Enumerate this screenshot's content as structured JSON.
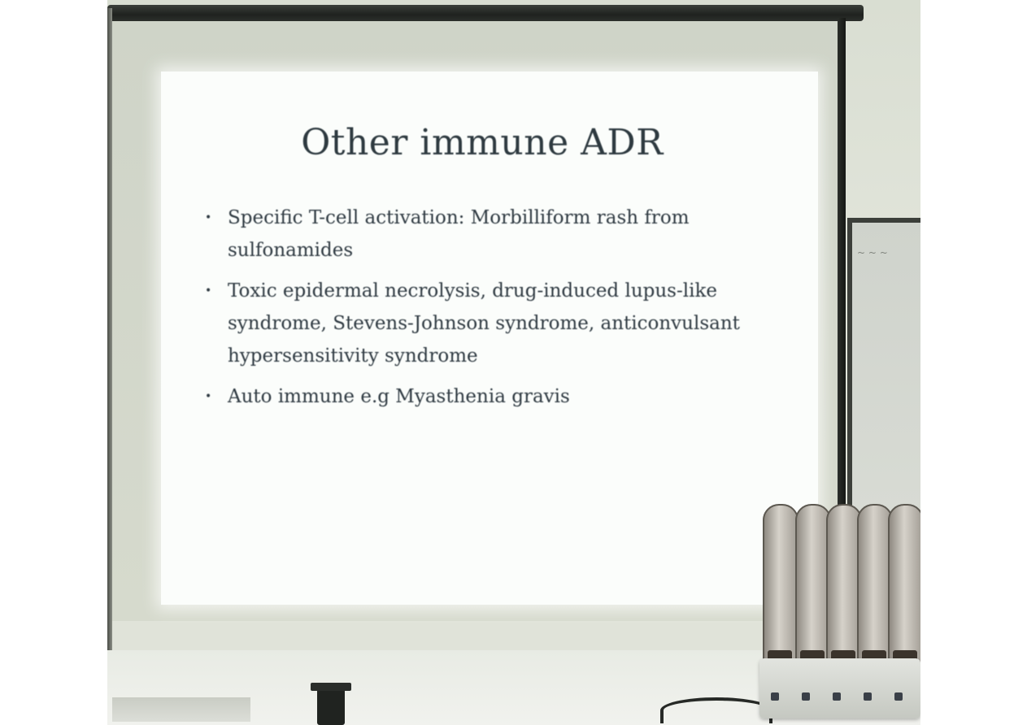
{
  "slide": {
    "title": "Other immune ADR",
    "bullets": [
      "Specific T-cell activation: Morbilliform rash from sulfonamides",
      "Toxic epidermal necrolysis, drug-induced lupus-like syndrome, Stevens-Johnson syndrome, anticonvulsant hypersensitivity syndrome",
      "Auto immune e.g Myasthenia gravis"
    ]
  },
  "colors": {
    "slide_background": "#fbfdfb",
    "slide_text": "#2f3a42",
    "wall": "#dfe2d8",
    "screen_frame": "#1f221f"
  },
  "icons": {
    "bullet": "bullet-dot-icon"
  }
}
